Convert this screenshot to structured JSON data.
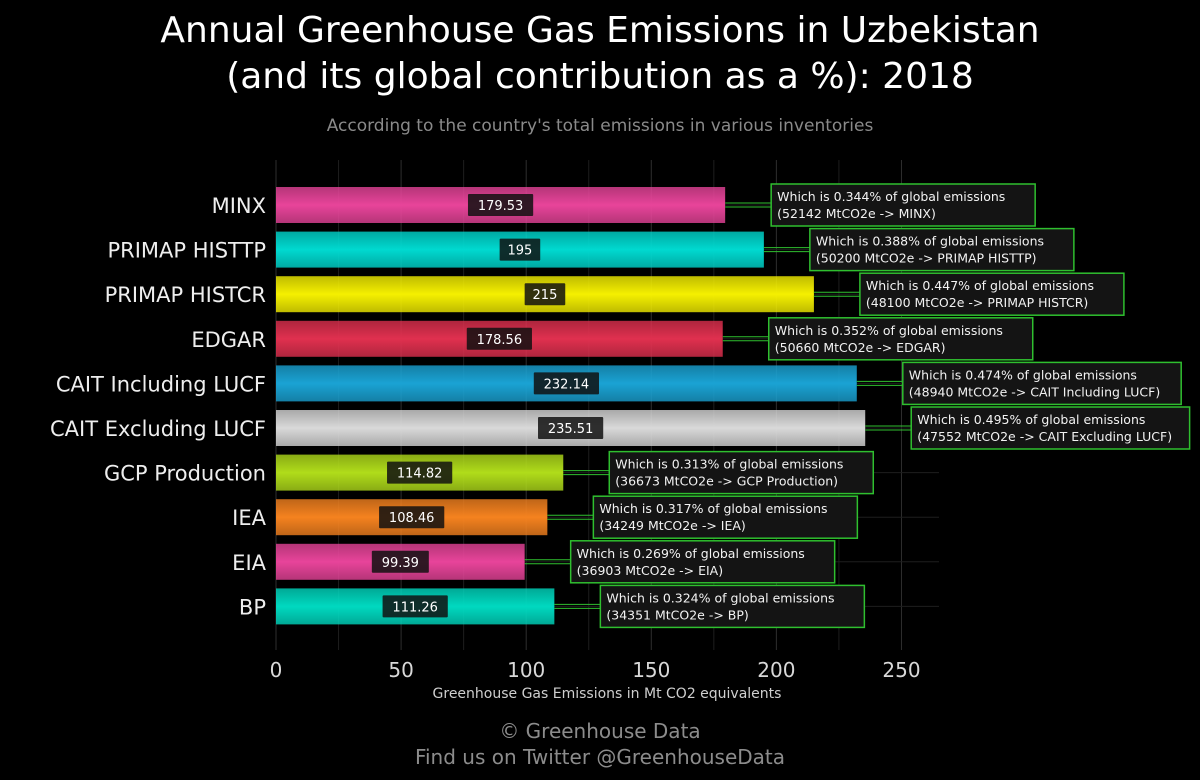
{
  "title_line1": "Annual Greenhouse Gas Emissions in Uzbekistan",
  "title_line2": "(and its global contribution as a %): 2018",
  "subtitle": "According to the country's total emissions in various inventories",
  "footer_line1": "© Greenhouse Data",
  "footer_line2": "Find us on Twitter @GreenhouseData",
  "chart_data": {
    "type": "bar",
    "orientation": "horizontal",
    "xlabel": "Greenhouse Gas Emissions in Mt CO2 equivalents",
    "ylabel": "",
    "xlim": [
      0,
      265
    ],
    "xticks": [
      0,
      50,
      100,
      150,
      200,
      250
    ],
    "grid": true,
    "categories": [
      "MINX",
      "PRIMAP HISTTP",
      "PRIMAP HISTCR",
      "EDGAR",
      "CAIT Including LUCF",
      "CAIT Excluding LUCF",
      "GCP Production",
      "IEA",
      "EIA",
      "BP"
    ],
    "values": [
      179.53,
      195,
      215,
      178.56,
      232.14,
      235.51,
      114.82,
      108.46,
      99.39,
      111.26
    ],
    "value_labels": [
      "179.53",
      "195",
      "215",
      "178.56",
      "232.14",
      "235.51",
      "114.82",
      "108.46",
      "99.39",
      "111.26"
    ],
    "colors": [
      "#e8449a",
      "#00d9d0",
      "#f5f000",
      "#e0304f",
      "#1aa3d4",
      "#d9d9d9",
      "#b0dc1a",
      "#f5821f",
      "#e8449a",
      "#00d9c0"
    ],
    "annotations": [
      [
        "Which is 0.344% of global emissions",
        "(52142 MtCO2e -> MINX)"
      ],
      [
        "Which is 0.388% of global emissions",
        "(50200 MtCO2e -> PRIMAP HISTTP)"
      ],
      [
        "Which is 0.447% of global emissions",
        "(48100 MtCO2e -> PRIMAP HISTCR)"
      ],
      [
        "Which is 0.352% of global emissions",
        "(50660 MtCO2e -> EDGAR)"
      ],
      [
        "Which is 0.474% of global emissions",
        "(48940 MtCO2e -> CAIT Including LUCF)"
      ],
      [
        "Which is 0.495% of global emissions",
        "(47552 MtCO2e -> CAIT Excluding LUCF)"
      ],
      [
        "Which is 0.313% of global emissions",
        "(36673 MtCO2e -> GCP Production)"
      ],
      [
        "Which is 0.317% of global emissions",
        "(34249 MtCO2e -> IEA)"
      ],
      [
        "Which is 0.269% of global emissions",
        "(36903 MtCO2e -> EIA)"
      ],
      [
        "Which is 0.324% of global emissions",
        "(34351 MtCO2e -> BP)"
      ]
    ],
    "annotation_border_color": "#2fbf2f",
    "background": "#000000"
  }
}
